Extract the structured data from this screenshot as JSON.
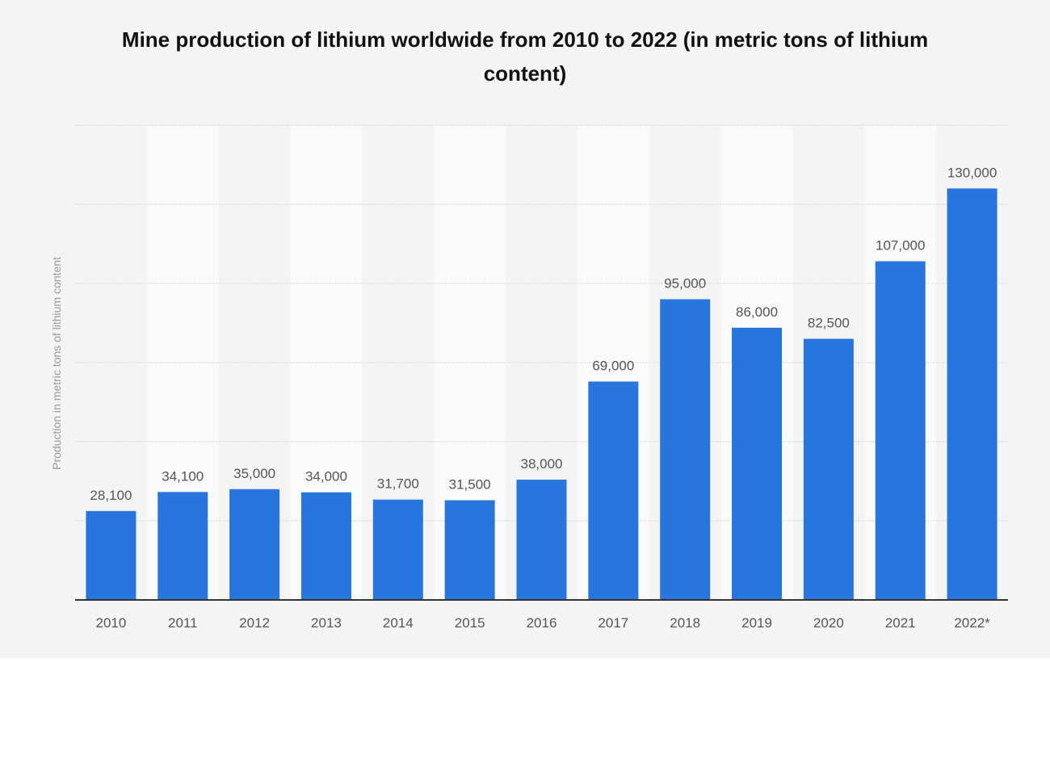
{
  "chart_data": {
    "type": "bar",
    "title": "Mine production of lithium worldwide from 2010 to 2022 (in metric tons of lithium content)",
    "xlabel": "",
    "ylabel": "Production in metric tons of lithium content",
    "categories": [
      "2010",
      "2011",
      "2012",
      "2013",
      "2014",
      "2015",
      "2016",
      "2017",
      "2018",
      "2019",
      "2020",
      "2021",
      "2022*"
    ],
    "values": [
      28100,
      34100,
      35000,
      34000,
      31700,
      31500,
      38000,
      69000,
      95000,
      86000,
      82500,
      107000,
      130000
    ],
    "data_labels": [
      "28,100",
      "34,100",
      "35,000",
      "34,000",
      "31,700",
      "31,500",
      "38,000",
      "69,000",
      "95,000",
      "86,000",
      "82,500",
      "107,000",
      "130,000"
    ],
    "ylim": [
      0,
      150000
    ],
    "grid_step": 25000,
    "grid": true,
    "y_tick_labels_shown": false,
    "legend": "none",
    "colors": {
      "bar": "#2876dd",
      "background": "#f4f4f4",
      "alt_column": "#fafafa",
      "axis": "#333333",
      "text": "#555555"
    }
  }
}
